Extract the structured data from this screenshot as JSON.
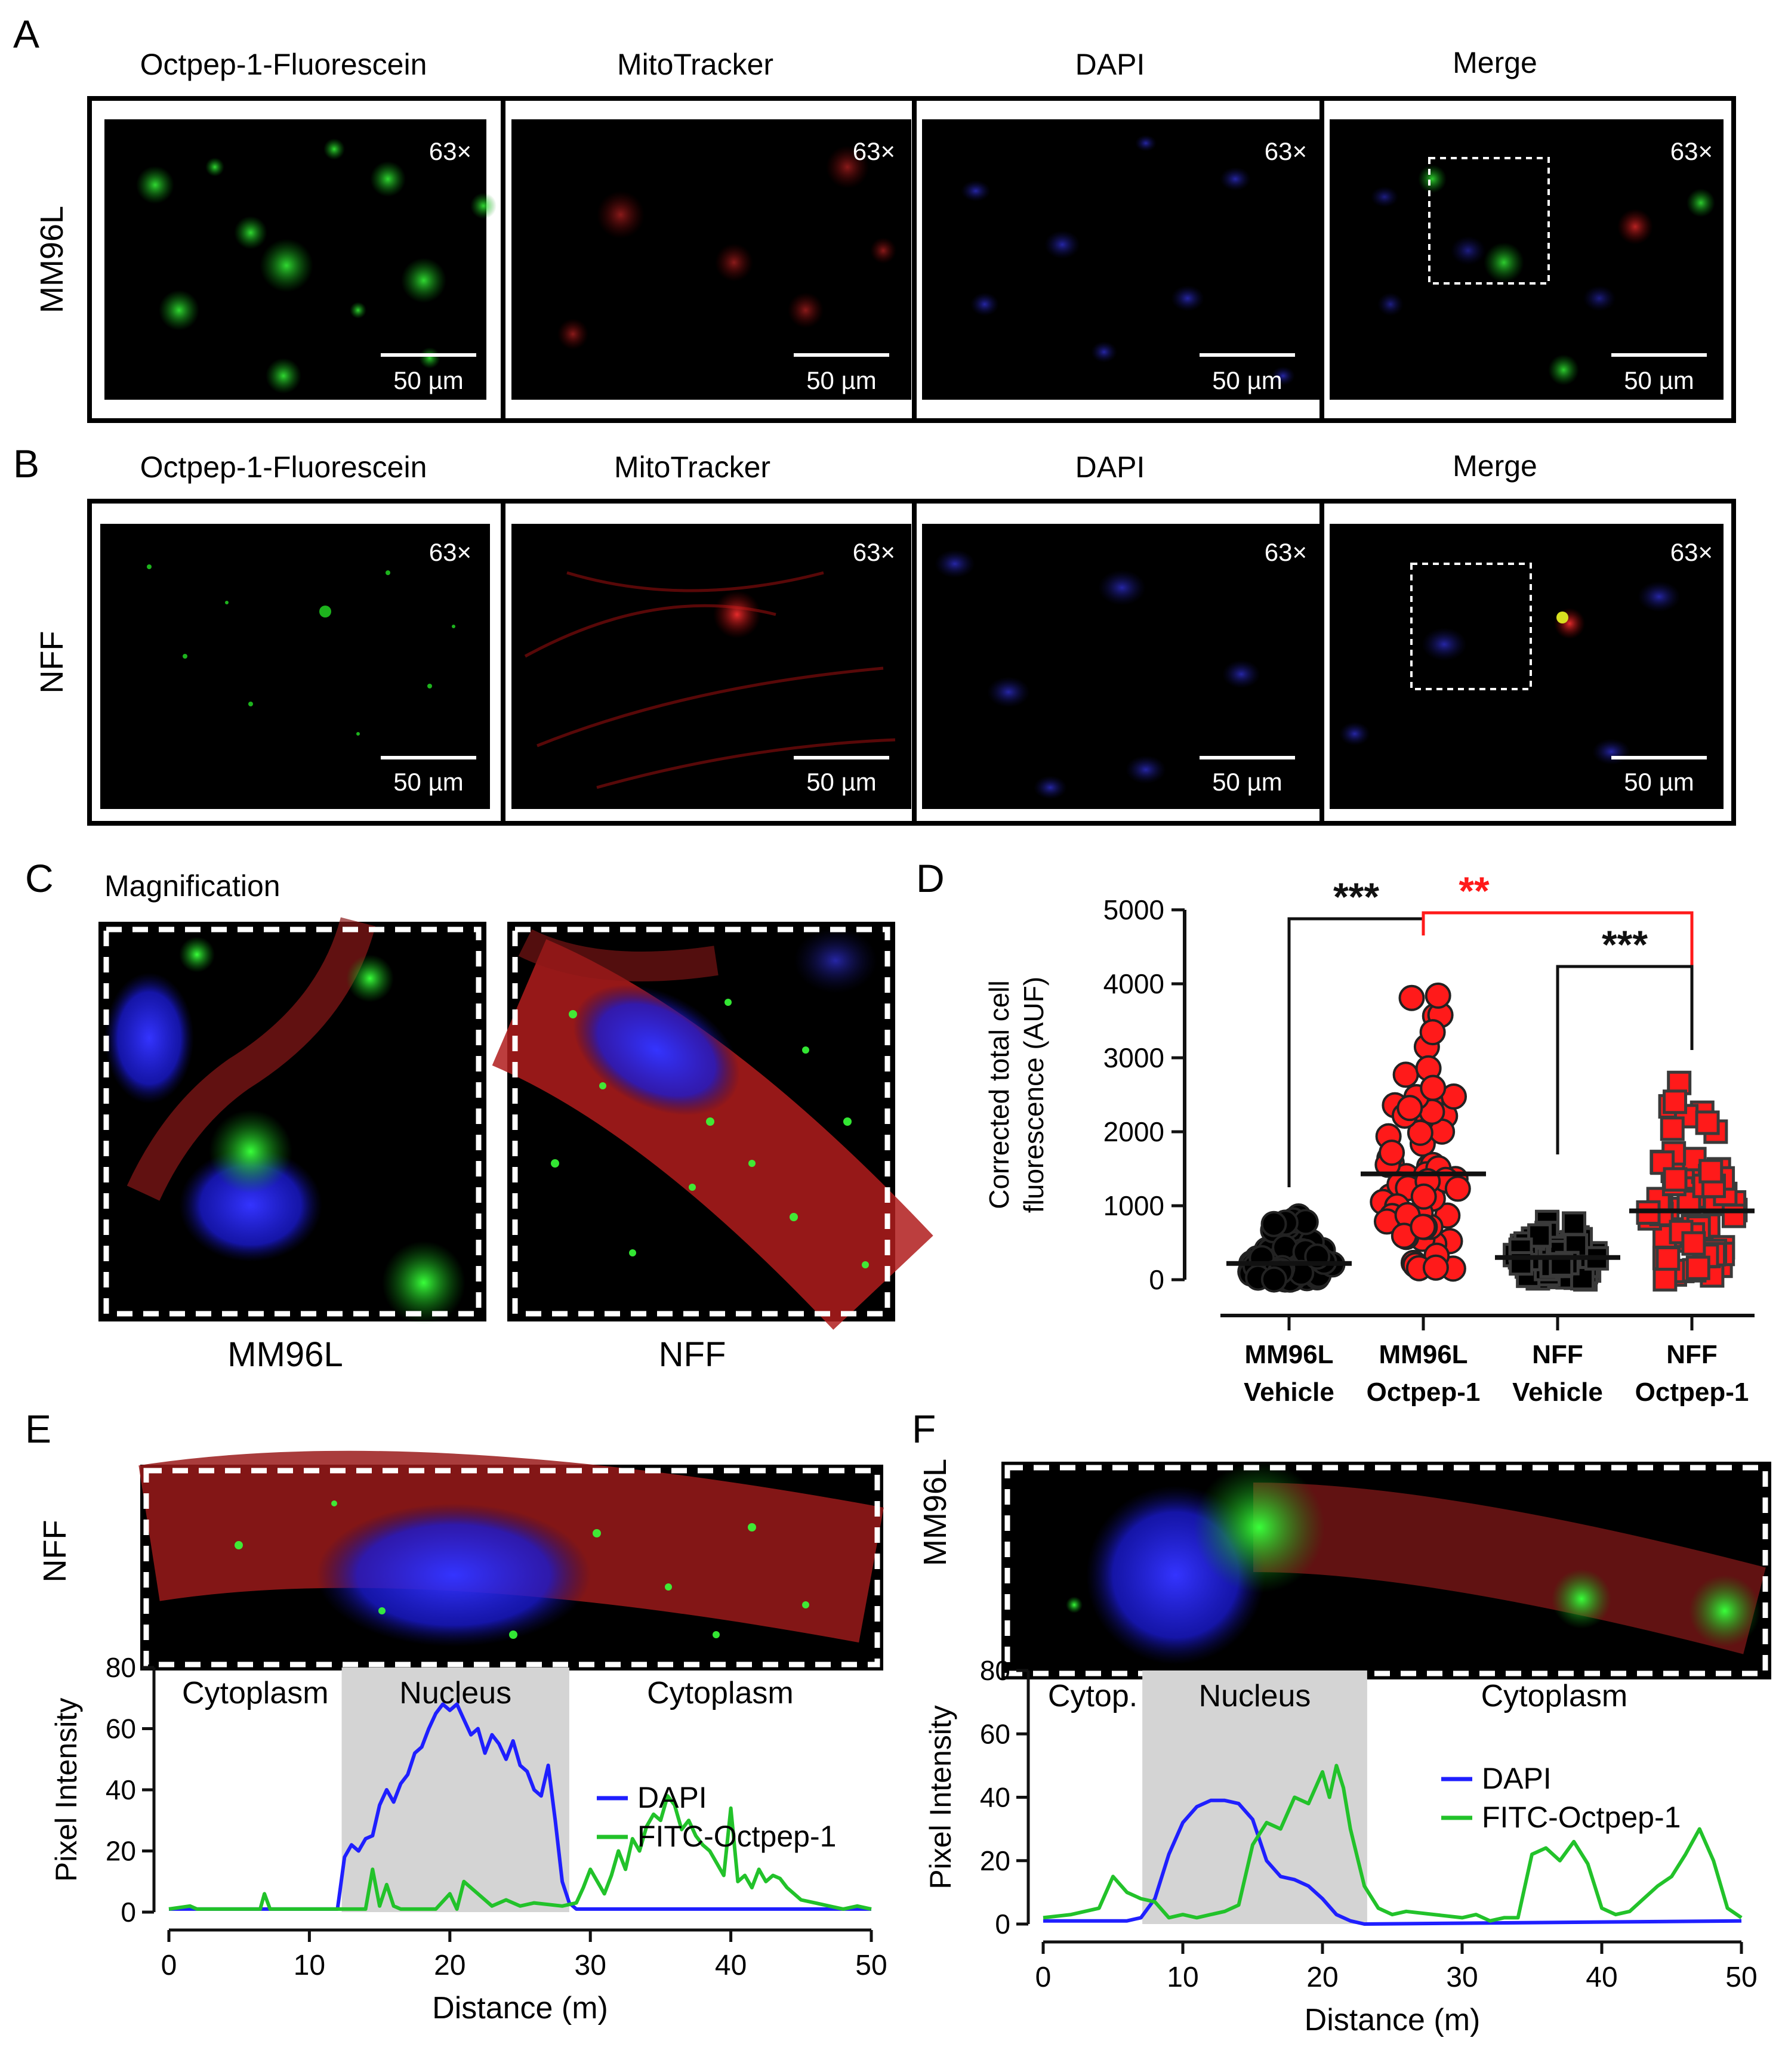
{
  "panel_letters": {
    "a": "A",
    "b": "B",
    "c": "C",
    "d": "D",
    "e": "E",
    "f": "F"
  },
  "channels": [
    "Octpep-1-Fluorescein",
    "MitoTracker",
    "DAPI",
    "Merge"
  ],
  "row_a": {
    "label": "MM96L"
  },
  "row_b": {
    "label": "NFF"
  },
  "magnification_badge": "63×",
  "scale_bar_label": "50 µm",
  "panel_c": {
    "title": "Magnification",
    "captions": [
      "MM96L",
      "NFF"
    ]
  },
  "colors": {
    "dapi": "#1f1fff",
    "fitc": "#22c22a",
    "mito": "#d01818",
    "sig_red": "#ff1a1a",
    "nucleus_shade": "#d4d4d4"
  },
  "panel_e": {
    "side_label": "NFF"
  },
  "panel_f": {
    "side_label": "MM96L"
  },
  "chart_data": [
    {
      "id": "D",
      "type": "scatter",
      "ylabel": "Corrected total cell fluorescence (AUF)",
      "ylim": [
        0,
        5000
      ],
      "yticks": [
        0,
        1000,
        2000,
        3000,
        4000,
        5000
      ],
      "groups": [
        {
          "line1": "MM96L",
          "line2": "Vehicle",
          "mean": 220,
          "min": 0,
          "max": 900,
          "marker": "circle",
          "fill": "#000000"
        },
        {
          "line1": "MM96L",
          "line2": "Octpep-1",
          "mean": 1430,
          "min": 150,
          "max": 4050,
          "marker": "circle",
          "fill": "#ff1a1a"
        },
        {
          "line1": "NFF",
          "line2": "Vehicle",
          "mean": 300,
          "min": 0,
          "max": 800,
          "marker": "square",
          "fill": "#000000"
        },
        {
          "line1": "NFF",
          "line2": "Octpep-1",
          "mean": 930,
          "min": 0,
          "max": 2750,
          "marker": "square",
          "fill": "#ff1a1a"
        }
      ],
      "significance": [
        {
          "from": 0,
          "to": 1,
          "label": "***",
          "color": "#111111"
        },
        {
          "from": 1,
          "to": 3,
          "label": "**",
          "color": "#ff1a1a"
        },
        {
          "from": 2,
          "to": 3,
          "label": "***",
          "color": "#111111"
        }
      ]
    },
    {
      "id": "E",
      "type": "line",
      "xlabel": "Distance (m)",
      "ylabel": "Pixel Intensity",
      "xlim": [
        0,
        50
      ],
      "ylim": [
        0,
        80
      ],
      "xticks": [
        0,
        10,
        20,
        30,
        40,
        50
      ],
      "yticks": [
        0,
        20,
        40,
        60,
        80
      ],
      "regions": [
        {
          "label": "Cytoplasm",
          "x0": 0,
          "x1": 12.3,
          "shaded": false
        },
        {
          "label": "Nucleus",
          "x0": 12.3,
          "x1": 28.5,
          "shaded": true
        },
        {
          "label": "Cytoplasm",
          "x0": 28.5,
          "x1": 50,
          "shaded": false
        }
      ],
      "series": [
        {
          "name": "DAPI",
          "color": "#1f1fff",
          "x": [
            0,
            12,
            12.5,
            13,
            13.5,
            14,
            14.5,
            15,
            15.5,
            16,
            16.5,
            17,
            17.5,
            18,
            18.5,
            19,
            19.5,
            20,
            20.5,
            21,
            21.5,
            22,
            22.5,
            23,
            23.5,
            24,
            24.5,
            25,
            25.5,
            26,
            26.5,
            27,
            27.5,
            28,
            28.5,
            29,
            50
          ],
          "y": [
            1,
            1,
            18,
            22,
            20,
            24,
            25,
            35,
            40,
            36,
            42,
            45,
            52,
            54,
            60,
            65,
            68,
            66,
            68,
            63,
            58,
            60,
            52,
            58,
            55,
            50,
            56,
            48,
            46,
            40,
            38,
            48,
            30,
            10,
            3,
            1,
            1
          ]
        },
        {
          "name": "FITC-Octpep-1",
          "color": "#22c22a",
          "x": [
            0,
            1.5,
            2,
            6.5,
            6.8,
            7.2,
            14,
            14.5,
            15,
            15.5,
            16,
            16.5,
            19,
            20,
            20.5,
            21,
            23,
            24,
            25,
            26,
            28,
            29,
            29.5,
            30,
            31,
            31.5,
            32,
            32.5,
            33,
            33.5,
            34,
            34.5,
            35,
            35.5,
            36,
            36.5,
            37,
            37.5,
            38,
            38.5,
            39,
            39.5,
            40,
            40.5,
            41,
            41.5,
            42,
            42.5,
            43,
            43.5,
            44,
            45,
            46,
            47,
            48,
            49,
            50
          ],
          "y": [
            1,
            2,
            1,
            1,
            6,
            1,
            1,
            14,
            2,
            9,
            2,
            1,
            1,
            6,
            1,
            10,
            2,
            4,
            2,
            3,
            2,
            3,
            8,
            14,
            6,
            12,
            20,
            14,
            24,
            20,
            28,
            32,
            30,
            38,
            35,
            27,
            30,
            25,
            22,
            20,
            16,
            12,
            34,
            10,
            12,
            8,
            14,
            10,
            12,
            11,
            8,
            4,
            3,
            2,
            1,
            2,
            1
          ]
        }
      ]
    },
    {
      "id": "F",
      "type": "line",
      "xlabel": "Distance (m)",
      "ylabel": "Pixel Intensity",
      "xlim": [
        0,
        50
      ],
      "ylim": [
        0,
        80
      ],
      "xticks": [
        0,
        10,
        20,
        30,
        40,
        50
      ],
      "yticks": [
        0,
        20,
        40,
        60,
        80
      ],
      "regions": [
        {
          "label": "Cytop.",
          "x0": 0,
          "x1": 7.1,
          "shaded": false
        },
        {
          "label": "Nucleus",
          "x0": 7.1,
          "x1": 23.2,
          "shaded": true
        },
        {
          "label": "Cytoplasm",
          "x0": 23.2,
          "x1": 50,
          "shaded": false
        }
      ],
      "series": [
        {
          "name": "DAPI",
          "color": "#1f1fff",
          "x": [
            0,
            6,
            7,
            8,
            9,
            10,
            11,
            12,
            13,
            14,
            15,
            16,
            17,
            18,
            19,
            20,
            21,
            22,
            23,
            50
          ],
          "y": [
            1,
            1,
            2,
            8,
            22,
            32,
            37,
            39,
            39,
            38,
            33,
            20,
            15,
            14,
            12,
            8,
            3,
            1,
            0,
            1
          ]
        },
        {
          "name": "FITC-Octpep-1",
          "color": "#22c22a",
          "x": [
            0,
            2,
            4,
            5,
            6,
            7,
            8,
            9,
            10,
            11,
            12,
            13,
            14,
            15,
            16,
            17,
            18,
            19,
            20,
            20.5,
            21,
            21.5,
            22,
            23,
            24,
            25,
            26,
            28,
            30,
            31,
            32,
            33,
            34,
            35,
            36,
            37,
            38,
            39,
            40,
            41,
            42,
            43,
            44,
            45,
            46,
            47,
            48,
            49,
            50
          ],
          "y": [
            2,
            3,
            5,
            15,
            10,
            8,
            7,
            2,
            3,
            2,
            3,
            4,
            6,
            25,
            32,
            30,
            40,
            38,
            48,
            40,
            50,
            43,
            30,
            12,
            5,
            3,
            4,
            3,
            2,
            3,
            1,
            2,
            2,
            22,
            24,
            20,
            26,
            19,
            5,
            3,
            4,
            8,
            12,
            15,
            22,
            30,
            20,
            5,
            2
          ]
        }
      ]
    }
  ]
}
